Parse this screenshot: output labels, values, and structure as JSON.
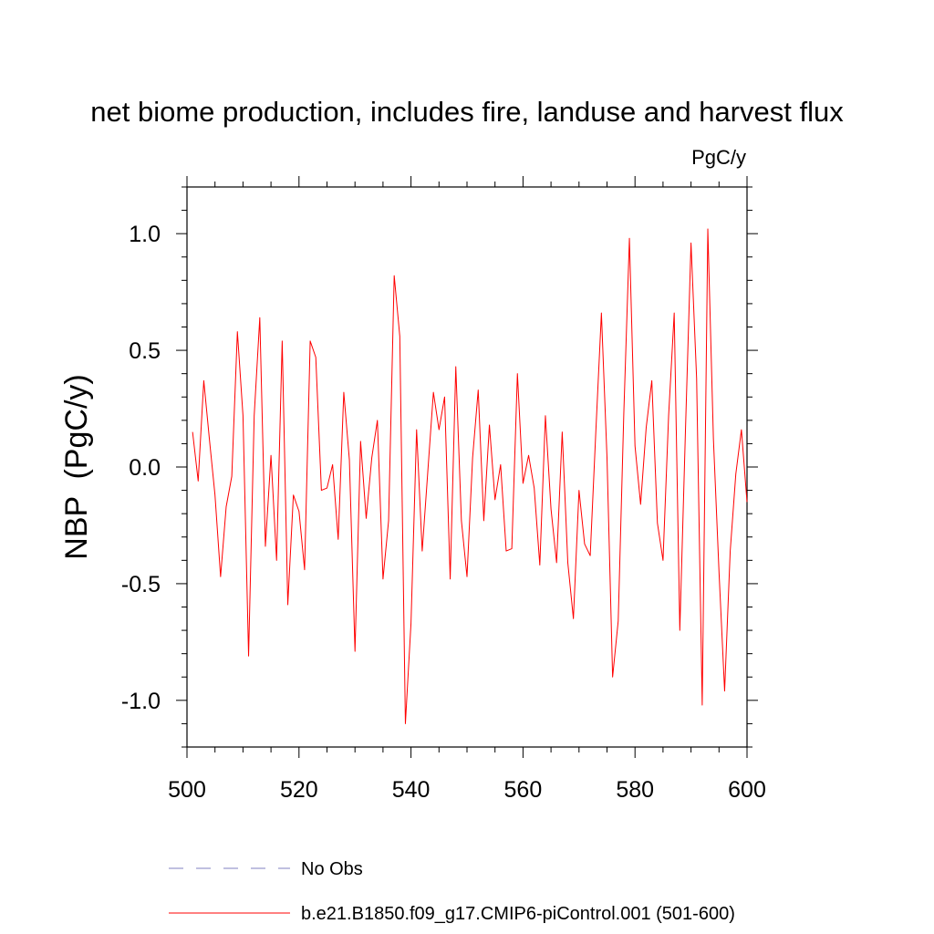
{
  "chart_data": {
    "type": "line",
    "title": "net biome production, includes fire, landuse and harvest flux",
    "units_label": "PgC/y",
    "ylabel": "NBP  (PgC/y)",
    "xlabel": "",
    "xlim": [
      500,
      600
    ],
    "ylim": [
      -1.2,
      1.2
    ],
    "xticks": [
      500,
      520,
      540,
      560,
      580,
      600
    ],
    "yticks": [
      -1.0,
      -0.5,
      0.0,
      0.5,
      1.0
    ],
    "ytick_labels": [
      "-1.0",
      "-0.5",
      "0.0",
      "0.5",
      "1.0"
    ],
    "grid": false,
    "legend_position": "bottom",
    "colors": {
      "model": "#ff0000",
      "obs": "#8080c0"
    },
    "series": [
      {
        "name": "b.e21.B1850.f09_g17.CMIP6-piControl.001 (501-600)",
        "style": "solid",
        "x": [
          501,
          502,
          503,
          504,
          505,
          506,
          507,
          508,
          509,
          510,
          511,
          512,
          513,
          514,
          515,
          516,
          517,
          518,
          519,
          520,
          521,
          522,
          523,
          524,
          525,
          526,
          527,
          528,
          529,
          530,
          531,
          532,
          533,
          534,
          535,
          536,
          537,
          538,
          539,
          540,
          541,
          542,
          543,
          544,
          545,
          546,
          547,
          548,
          549,
          550,
          551,
          552,
          553,
          554,
          555,
          556,
          557,
          558,
          559,
          560,
          561,
          562,
          563,
          564,
          565,
          566,
          567,
          568,
          569,
          570,
          571,
          572,
          573,
          574,
          575,
          576,
          577,
          578,
          579,
          580,
          581,
          582,
          583,
          584,
          585,
          586,
          587,
          588,
          589,
          590,
          591,
          592,
          593,
          594,
          595,
          596,
          597,
          598,
          599,
          600
        ],
        "values": [
          0.15,
          -0.06,
          0.37,
          0.12,
          -0.12,
          -0.47,
          -0.17,
          -0.04,
          0.58,
          0.22,
          -0.81,
          0.22,
          0.64,
          -0.34,
          0.05,
          -0.4,
          0.54,
          -0.59,
          -0.12,
          -0.19,
          -0.44,
          0.54,
          0.47,
          -0.1,
          -0.09,
          0.01,
          -0.31,
          0.32,
          0.03,
          -0.79,
          0.11,
          -0.22,
          0.04,
          0.2,
          -0.48,
          -0.23,
          0.82,
          0.56,
          -1.1,
          -0.67,
          0.16,
          -0.36,
          -0.02,
          0.32,
          0.16,
          0.3,
          -0.48,
          0.43,
          -0.23,
          -0.47,
          0.04,
          0.33,
          -0.23,
          0.18,
          -0.14,
          0.01,
          -0.36,
          -0.35,
          0.4,
          -0.07,
          0.05,
          -0.09,
          -0.42,
          0.22,
          -0.18,
          -0.41,
          0.15,
          -0.41,
          -0.65,
          -0.1,
          -0.33,
          -0.38,
          0.15,
          0.66,
          0.04,
          -0.9,
          -0.66,
          0.23,
          0.98,
          0.09,
          -0.16,
          0.17,
          0.37,
          -0.24,
          -0.4,
          0.22,
          0.66,
          -0.7,
          0.15,
          0.96,
          0.38,
          -1.02,
          1.02,
          0.12,
          -0.45,
          -0.96,
          -0.36,
          -0.03,
          0.16,
          -0.15
        ]
      }
    ],
    "legend": [
      {
        "label": "No Obs",
        "style": "dashed",
        "color": "#8080c0"
      },
      {
        "label": "b.e21.B1850.f09_g17.CMIP6-piControl.001 (501-600)",
        "style": "solid",
        "color": "#ff0000"
      }
    ]
  }
}
